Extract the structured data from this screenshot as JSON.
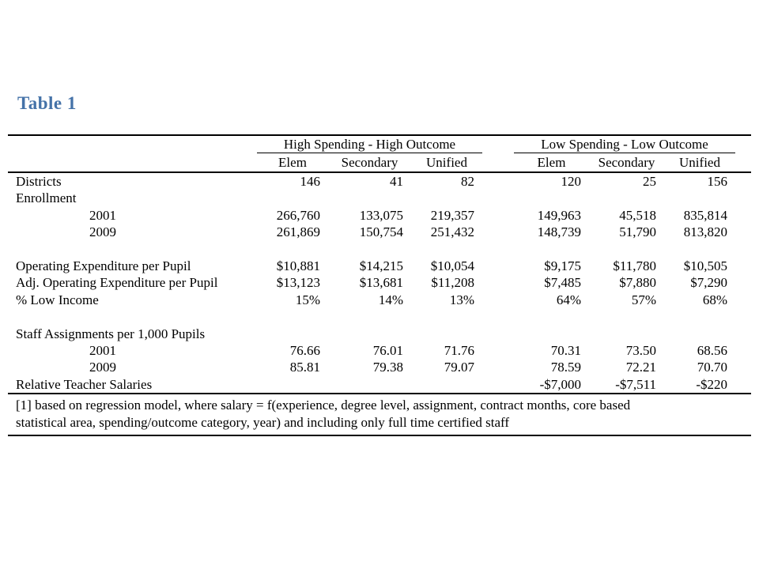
{
  "title": {
    "text": "Table 1",
    "color": "#4472A8"
  },
  "table": {
    "group_headers": [
      "High Spending - High Outcome",
      "Low Spending - Low Outcome"
    ],
    "columns": [
      "Elem",
      "Secondary",
      "Unified",
      "Elem",
      "Secondary",
      "Unified"
    ],
    "rows": [
      {
        "label": "Districts",
        "indent": false,
        "values": [
          "146",
          "41",
          "82",
          "120",
          "25",
          "156"
        ]
      },
      {
        "label": "Enrollment",
        "indent": false,
        "values": [
          "",
          "",
          "",
          "",
          "",
          ""
        ]
      },
      {
        "label": "2001",
        "indent": true,
        "values": [
          "266,760",
          "133,075",
          "219,357",
          "149,963",
          "45,518",
          "835,814"
        ]
      },
      {
        "label": "2009",
        "indent": true,
        "values": [
          "261,869",
          "150,754",
          "251,432",
          "148,739",
          "51,790",
          "813,820"
        ]
      },
      {
        "label": "",
        "indent": false,
        "values": [
          "",
          "",
          "",
          "",
          "",
          ""
        ]
      },
      {
        "label": "Operating Expenditure per Pupil",
        "indent": false,
        "values": [
          "$10,881",
          "$14,215",
          "$10,054",
          "$9,175",
          "$11,780",
          "$10,505"
        ]
      },
      {
        "label": "Adj. Operating Expenditure per Pupil",
        "indent": false,
        "values": [
          "$13,123",
          "$13,681",
          "$11,208",
          "$7,485",
          "$7,880",
          "$7,290"
        ]
      },
      {
        "label": "% Low Income",
        "indent": false,
        "values": [
          "15%",
          "14%",
          "13%",
          "64%",
          "57%",
          "68%"
        ]
      },
      {
        "label": "",
        "indent": false,
        "values": [
          "",
          "",
          "",
          "",
          "",
          ""
        ]
      },
      {
        "label": "Staff Assignments per 1,000 Pupils",
        "indent": false,
        "values": [
          "",
          "",
          "",
          "",
          "",
          ""
        ]
      },
      {
        "label": "2001",
        "indent": true,
        "values": [
          "76.66",
          "76.01",
          "71.76",
          "70.31",
          "73.50",
          "68.56"
        ]
      },
      {
        "label": "2009",
        "indent": true,
        "values": [
          "85.81",
          "79.38",
          "79.07",
          "78.59",
          "72.21",
          "70.70"
        ]
      },
      {
        "label": "Relative Teacher Salaries",
        "indent": false,
        "values": [
          "",
          "",
          "",
          "-$7,000",
          "-$7,511",
          "-$220"
        ]
      }
    ],
    "footnote": {
      "line1": "[1] based on regression model, where salary = f(experience, degree level, assignment, contract months, core based",
      "line2": "statistical area, spending/outcome category, year) and including only full time certified staff"
    }
  }
}
